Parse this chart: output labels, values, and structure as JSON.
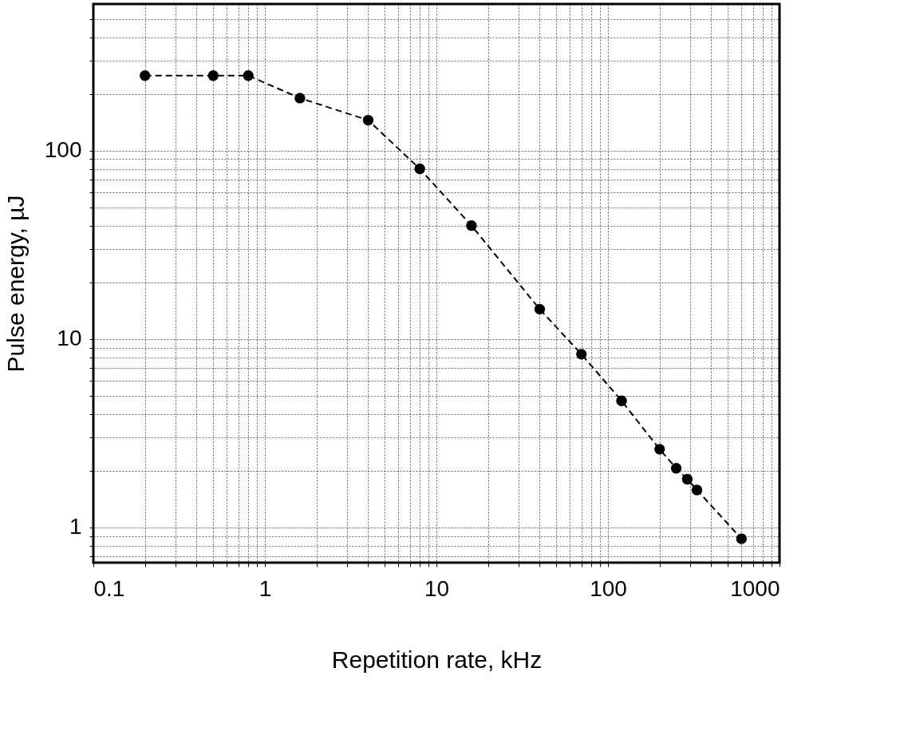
{
  "chart_data": {
    "type": "line",
    "xlabel": "Repetition rate, kHz",
    "ylabel": "Pulse energy, µJ",
    "log": "xy",
    "grid": true,
    "marker": "circle",
    "line_style": "dashed",
    "xlim": [
      0.1,
      1000
    ],
    "ylim": [
      0.65,
      600
    ],
    "xticks": [
      0.1,
      {
        "value": 0.2,
        "label": null
      },
      {
        "value": 0.3,
        "label": null
      },
      {
        "value": 0.4,
        "label": null
      },
      {
        "value": 0.5,
        "label": null
      },
      {
        "value": 0.6,
        "label": null
      },
      {
        "value": 0.7,
        "label": null
      },
      {
        "value": 0.8,
        "label": null
      },
      {
        "value": 0.9,
        "label": null
      },
      1,
      {
        "value": 2,
        "label": null
      },
      {
        "value": 3,
        "label": null
      },
      {
        "value": 4,
        "label": null
      },
      {
        "value": 5,
        "label": null
      },
      {
        "value": 6,
        "label": null
      },
      {
        "value": 7,
        "label": null
      },
      {
        "value": 8,
        "label": null
      },
      {
        "value": 9,
        "label": null
      },
      10,
      {
        "value": 20,
        "label": null
      },
      {
        "value": 30,
        "label": null
      },
      {
        "value": 40,
        "label": null
      },
      {
        "value": 50,
        "label": null
      },
      {
        "value": 60,
        "label": null
      },
      {
        "value": 70,
        "label": null
      },
      {
        "value": 80,
        "label": null
      },
      {
        "value": 90,
        "label": null
      },
      100,
      {
        "value": 200,
        "label": null
      },
      {
        "value": 300,
        "label": null
      },
      {
        "value": 400,
        "label": null
      },
      {
        "value": 500,
        "label": null
      },
      {
        "value": 600,
        "label": null
      },
      {
        "value": 700,
        "label": null
      },
      {
        "value": 800,
        "label": null
      },
      {
        "value": 900,
        "label": null
      },
      1000
    ],
    "yticks": [
      {
        "value": 0.7,
        "label": null
      },
      {
        "value": 0.8,
        "label": null
      },
      {
        "value": 0.9,
        "label": null
      },
      1,
      {
        "value": 2,
        "label": null
      },
      {
        "value": 3,
        "label": null
      },
      {
        "value": 4,
        "label": null
      },
      {
        "value": 5,
        "label": null
      },
      {
        "value": 6,
        "label": null
      },
      {
        "value": 7,
        "label": null
      },
      {
        "value": 8,
        "label": null
      },
      {
        "value": 9,
        "label": null
      },
      10,
      {
        "value": 20,
        "label": null
      },
      {
        "value": 30,
        "label": null
      },
      {
        "value": 40,
        "label": null
      },
      {
        "value": 50,
        "label": null
      },
      {
        "value": 60,
        "label": null
      },
      {
        "value": 70,
        "label": null
      },
      {
        "value": 80,
        "label": null
      },
      {
        "value": 90,
        "label": null
      },
      100,
      {
        "value": 200,
        "label": null
      },
      {
        "value": 300,
        "label": null
      },
      {
        "value": 400,
        "label": null
      },
      {
        "value": 500,
        "label": null
      }
    ],
    "series": [
      {
        "color": "#000000",
        "x": [
          0.2,
          0.5,
          0.8,
          1.6,
          4,
          8,
          16,
          40,
          70,
          120,
          200,
          250,
          290,
          330,
          600
        ],
        "values": [
          250,
          250,
          250,
          190,
          145,
          80,
          40,
          14.4,
          8.3,
          4.7,
          2.6,
          2.06,
          1.8,
          1.58,
          0.87
        ]
      }
    ]
  }
}
